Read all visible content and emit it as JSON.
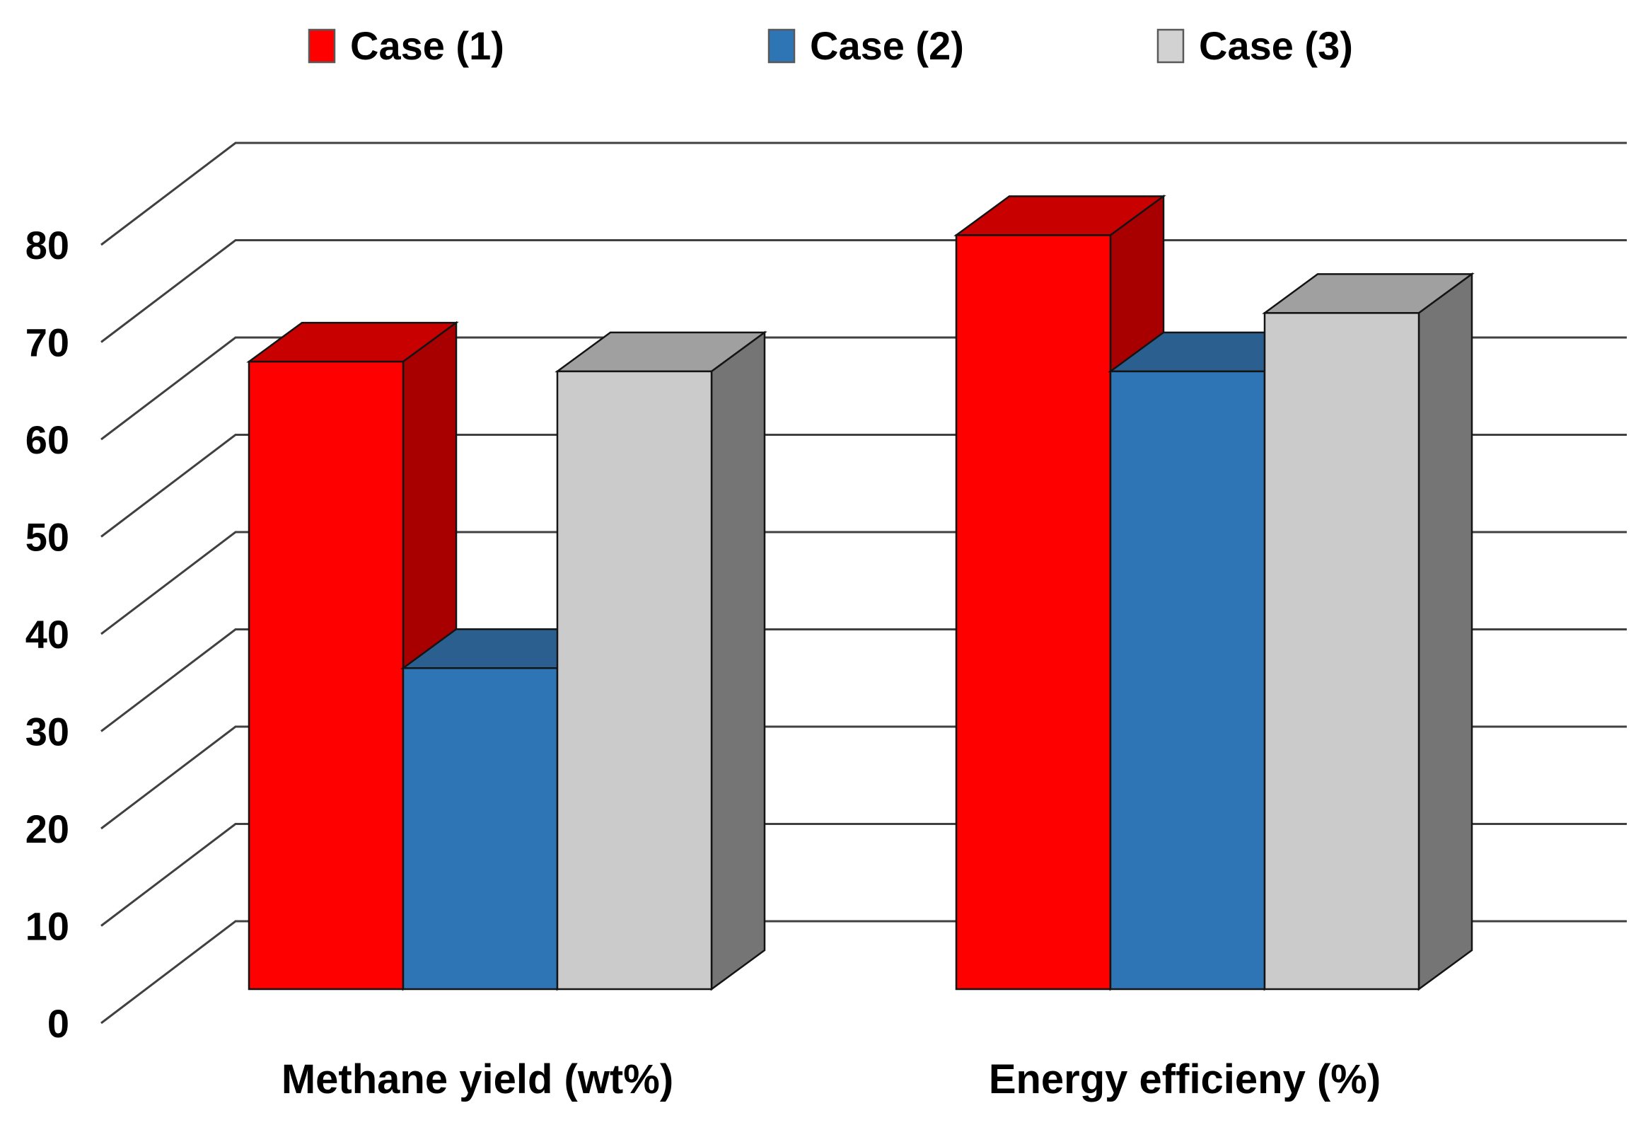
{
  "background_color": "#FFFFFF",
  "legend": {
    "position": "top",
    "items": [
      {
        "label": "Case (1)",
        "color": "#FE0000"
      },
      {
        "label": "Case (2)",
        "color": "#2E75B6"
      },
      {
        "label": "Case (3)",
        "color": "#D2D2D2"
      }
    ]
  },
  "chart_data": {
    "type": "bar",
    "projection": "3d-oblique",
    "title": "",
    "categories": [
      "Methane yield (wt%)",
      "Energy efficieny (%)"
    ],
    "series": [
      {
        "name": "Case (1)",
        "color": "#FE0000",
        "shades": {
          "front": "#FE0000",
          "top": "#C80000",
          "side": "#A80000"
        },
        "values": [
          64.5,
          77.5
        ]
      },
      {
        "name": "Case (2)",
        "color": "#2E75B6",
        "shades": {
          "front": "#2E75B6",
          "top": "#2B5F8F",
          "side": "#1F4E79"
        },
        "values": [
          33,
          63.5
        ]
      },
      {
        "name": "Case (3)",
        "color": "#CBCBCB",
        "shades": {
          "front": "#CBCBCB",
          "top": "#A0A0A0",
          "side": "#757575"
        },
        "values": [
          63.5,
          69.5
        ]
      }
    ],
    "ylim": [
      0,
      80
    ],
    "ytick_step": 10,
    "yticks": [
      "0",
      "10",
      "20",
      "30",
      "40",
      "50",
      "60",
      "70",
      "80"
    ],
    "grid": true,
    "gridline_color": "#404040",
    "outline_color": "#141414",
    "legend_position": "top"
  }
}
